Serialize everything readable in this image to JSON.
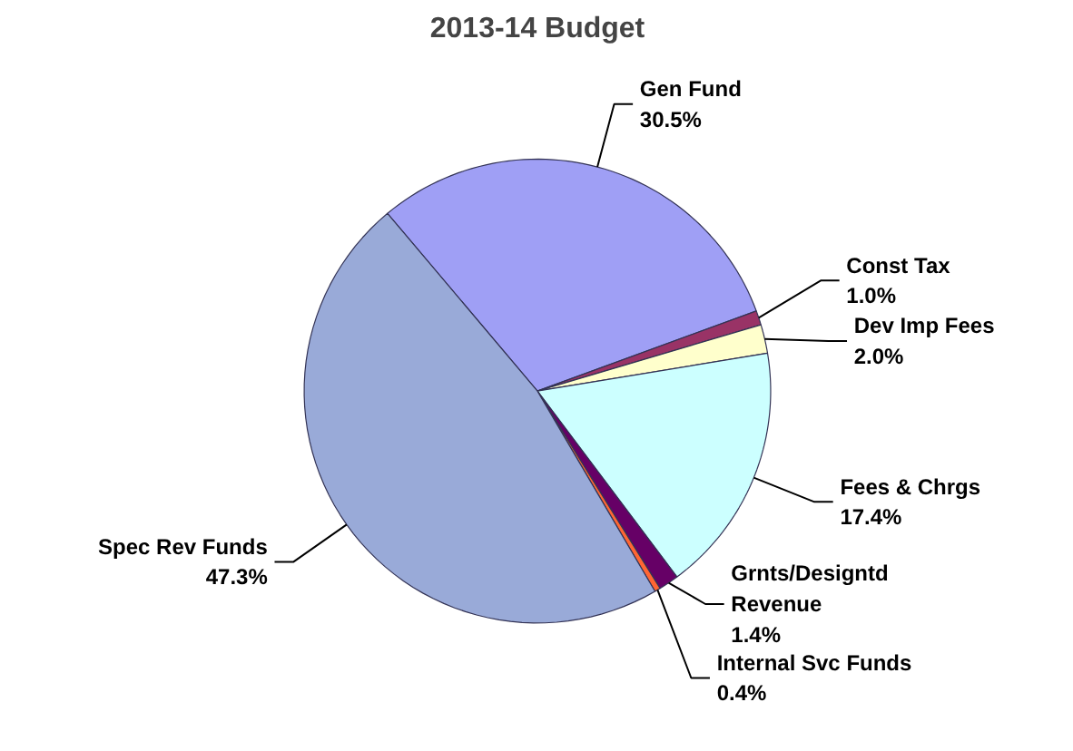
{
  "chart_data": {
    "type": "pie",
    "title": "2013-14 Budget",
    "categories": [
      "Gen Fund",
      "Const Tax",
      "Dev Imp Fees",
      "Fees & Chrgs",
      "Grnts/Designtd\nRevenue",
      "Internal Svc Funds",
      "Spec Rev Funds"
    ],
    "values": [
      30.5,
      1.0,
      2.0,
      17.4,
      1.4,
      0.4,
      47.3
    ],
    "value_labels": [
      "30.5%",
      "1.0%",
      "2.0%",
      "17.4%",
      "1.4%",
      "0.4%",
      "47.3%"
    ],
    "colors": [
      "#9f9ff5",
      "#993366",
      "#ffffcc",
      "#ccffff",
      "#660066",
      "#ff6633",
      "#99aad8"
    ],
    "legend": false
  }
}
